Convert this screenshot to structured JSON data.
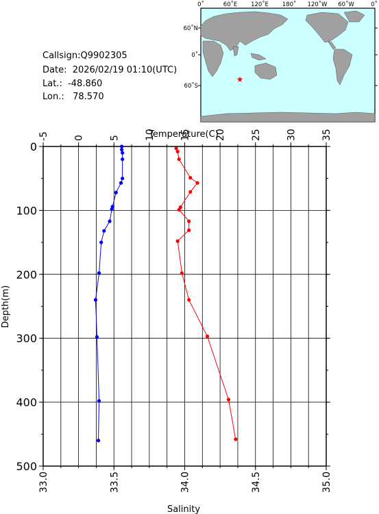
{
  "info": {
    "callsign": "Callsign:Q9902305",
    "date": "Date:  2026/02/19 01:10(UTC)",
    "lat": "Lat.:  -48.860",
    "lon": "Lon.:   78.570"
  },
  "map": {
    "lon_labels": [
      "0˚",
      "60˚E",
      "120˚E",
      "180˚",
      "120˚W",
      "60˚W",
      "0˚"
    ],
    "lat_labels": [
      "60˚N",
      "0˚",
      "60˚S"
    ],
    "ocean_color": "#ccffff",
    "land_color": "#a0a0a0",
    "marker": {
      "lon": 78.57,
      "lat": -48.86,
      "color": "#ff0000",
      "icon": "star"
    }
  },
  "chart_data": {
    "type": "line",
    "top_axis_label": "Temperature(C)",
    "bottom_axis_label": "Salinity",
    "y_label": "Depth(m)",
    "temperature_axis": {
      "range": [
        -5,
        35
      ],
      "ticks": [
        "-5",
        "0",
        "5",
        "10",
        "15",
        "20",
        "25",
        "30",
        "35"
      ]
    },
    "salinity_axis": {
      "range": [
        33.0,
        35.0
      ],
      "ticks": [
        "33.0",
        "33.5",
        "34.0",
        "34.5",
        "35.0"
      ]
    },
    "depth_axis": {
      "range": [
        0,
        500
      ],
      "inverted": true,
      "ticks": [
        "0",
        "100",
        "200",
        "300",
        "400",
        "500"
      ]
    },
    "grid": true,
    "series": [
      {
        "measure": "temperature",
        "color": "#0000ff",
        "points": [
          {
            "depth": 0,
            "value": 6.1
          },
          {
            "depth": 5,
            "value": 6.1
          },
          {
            "depth": 10,
            "value": 6.2
          },
          {
            "depth": 20,
            "value": 6.2
          },
          {
            "depth": 50,
            "value": 6.2
          },
          {
            "depth": 57,
            "value": 6.0
          },
          {
            "depth": 72,
            "value": 5.3
          },
          {
            "depth": 94,
            "value": 4.8
          },
          {
            "depth": 98,
            "value": 4.7
          },
          {
            "depth": 117,
            "value": 4.4
          },
          {
            "depth": 132,
            "value": 3.6
          },
          {
            "depth": 150,
            "value": 3.2
          },
          {
            "depth": 198,
            "value": 2.9
          },
          {
            "depth": 240,
            "value": 2.4
          },
          {
            "depth": 298,
            "value": 2.6
          },
          {
            "depth": 398,
            "value": 2.9
          },
          {
            "depth": 460,
            "value": 2.8
          }
        ]
      },
      {
        "measure": "salinity",
        "color": "#ff0000",
        "points": [
          {
            "depth": 3,
            "value": 33.94
          },
          {
            "depth": 8,
            "value": 33.95
          },
          {
            "depth": 20,
            "value": 33.96
          },
          {
            "depth": 49,
            "value": 34.04
          },
          {
            "depth": 57,
            "value": 34.09
          },
          {
            "depth": 71,
            "value": 34.04
          },
          {
            "depth": 95,
            "value": 33.97
          },
          {
            "depth": 99,
            "value": 33.96
          },
          {
            "depth": 117,
            "value": 34.03
          },
          {
            "depth": 131,
            "value": 34.03
          },
          {
            "depth": 148,
            "value": 33.95
          },
          {
            "depth": 198,
            "value": 33.98
          },
          {
            "depth": 240,
            "value": 34.03
          },
          {
            "depth": 297,
            "value": 34.16
          },
          {
            "depth": 396,
            "value": 34.31
          },
          {
            "depth": 458,
            "value": 34.36
          }
        ]
      }
    ]
  }
}
